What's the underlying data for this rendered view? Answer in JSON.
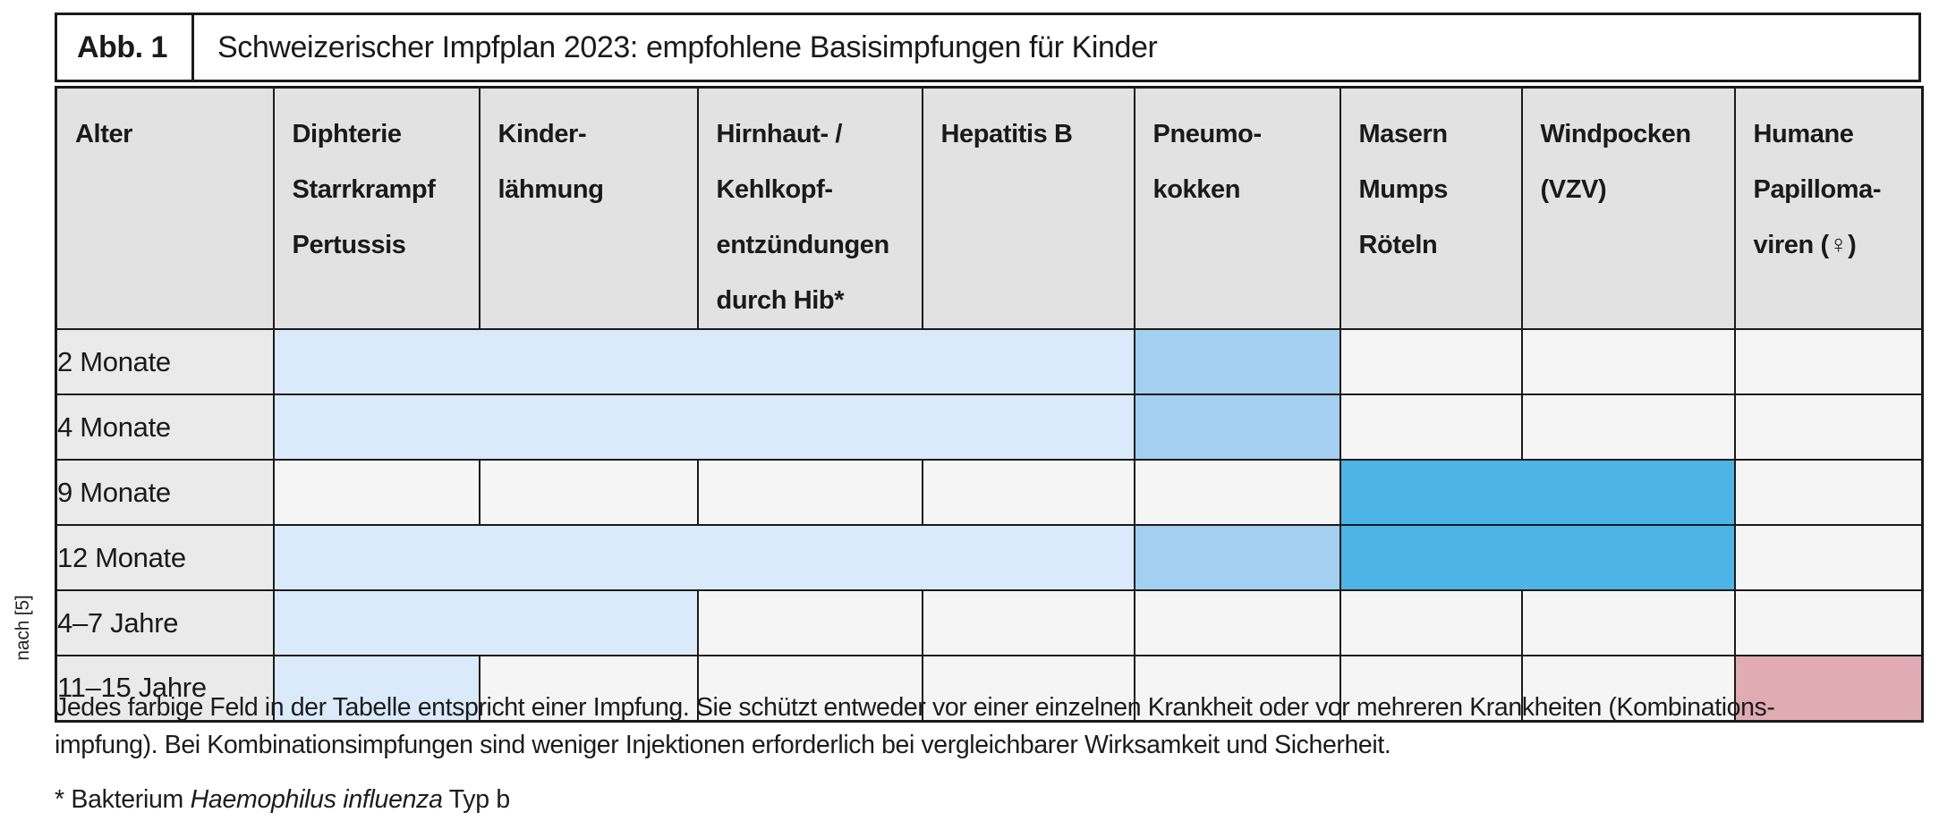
{
  "figure_header": {
    "label": "Abb. 1",
    "title": "Schweizerischer Impfplan 2023: empfohlene Basisimpfungen für Kinder"
  },
  "source_note": "nach [5]",
  "colors": {
    "header_bg": "#e2e2e2",
    "row_label_bg": "#eaeaea",
    "empty_cell": "#f5f5f5",
    "light_blue": "#dbeafa",
    "medium_blue": "#a3cff0",
    "dark_blue": "#4cb4e6",
    "pink": "#e1abb4",
    "border": "#1a1a1a"
  },
  "table": {
    "columns": [
      {
        "id": "alter",
        "lines": [
          "Alter"
        ]
      },
      {
        "id": "diphterie",
        "lines": [
          "Diphterie",
          "Starrkrampf",
          "Pertussis"
        ]
      },
      {
        "id": "kinderlaehmung",
        "lines": [
          "Kinder-",
          "lähmung"
        ]
      },
      {
        "id": "hib",
        "lines": [
          "Hirnhaut- /",
          "Kehlkopf-",
          "entzündungen",
          "durch Hib*"
        ]
      },
      {
        "id": "hepatitis-b",
        "lines": [
          "Hepatitis B"
        ]
      },
      {
        "id": "pneumokokken",
        "lines": [
          "Pneumo-",
          "kokken"
        ]
      },
      {
        "id": "masern",
        "lines": [
          "Masern",
          "Mumps",
          "Röteln"
        ]
      },
      {
        "id": "windpocken",
        "lines": [
          "Windpocken",
          "(VZV)"
        ]
      },
      {
        "id": "hpv",
        "lines": [
          "Humane",
          "Papilloma-",
          "viren (♀)"
        ]
      }
    ],
    "rows": [
      {
        "label": "2 Monate",
        "cells": [
          {
            "span": 4,
            "color": "light_blue"
          },
          {
            "span": 1,
            "color": "medium_blue"
          },
          {
            "span": 1,
            "color": "empty_cell"
          },
          {
            "span": 1,
            "color": "empty_cell"
          },
          {
            "span": 1,
            "color": "empty_cell"
          }
        ]
      },
      {
        "label": "4 Monate",
        "cells": [
          {
            "span": 4,
            "color": "light_blue"
          },
          {
            "span": 1,
            "color": "medium_blue"
          },
          {
            "span": 1,
            "color": "empty_cell"
          },
          {
            "span": 1,
            "color": "empty_cell"
          },
          {
            "span": 1,
            "color": "empty_cell"
          }
        ]
      },
      {
        "label": "9 Monate",
        "cells": [
          {
            "span": 1,
            "color": "empty_cell"
          },
          {
            "span": 1,
            "color": "empty_cell"
          },
          {
            "span": 1,
            "color": "empty_cell"
          },
          {
            "span": 1,
            "color": "empty_cell"
          },
          {
            "span": 1,
            "color": "empty_cell"
          },
          {
            "span": 2,
            "color": "dark_blue"
          },
          {
            "span": 1,
            "color": "empty_cell"
          }
        ]
      },
      {
        "label": "12 Monate",
        "cells": [
          {
            "span": 4,
            "color": "light_blue"
          },
          {
            "span": 1,
            "color": "medium_blue"
          },
          {
            "span": 2,
            "color": "dark_blue"
          },
          {
            "span": 1,
            "color": "empty_cell"
          }
        ]
      },
      {
        "label": "4–7 Jahre",
        "cells": [
          {
            "span": 2,
            "color": "light_blue"
          },
          {
            "span": 1,
            "color": "empty_cell"
          },
          {
            "span": 1,
            "color": "empty_cell"
          },
          {
            "span": 1,
            "color": "empty_cell"
          },
          {
            "span": 1,
            "color": "empty_cell"
          },
          {
            "span": 1,
            "color": "empty_cell"
          },
          {
            "span": 1,
            "color": "empty_cell"
          }
        ]
      },
      {
        "label": "11–15 Jahre",
        "cells": [
          {
            "span": 1,
            "color": "light_blue"
          },
          {
            "span": 1,
            "color": "empty_cell"
          },
          {
            "span": 1,
            "color": "empty_cell"
          },
          {
            "span": 1,
            "color": "empty_cell"
          },
          {
            "span": 1,
            "color": "empty_cell"
          },
          {
            "span": 1,
            "color": "empty_cell"
          },
          {
            "span": 1,
            "color": "empty_cell"
          },
          {
            "span": 1,
            "color": "pink"
          }
        ]
      }
    ]
  },
  "caption": {
    "line1": "Jedes farbige Feld in der Tabelle entspricht einer Impfung. Sie schützt entweder vor einer einzelnen Krankheit oder vor mehreren Krankheiten (Kombinations-",
    "line2": "impfung). Bei Kombinationsimpfungen sind weniger Injektionen erforderlich bei vergleichbarer Wirksamkeit und Sicherheit."
  },
  "footnote": {
    "prefix": "* Bakterium ",
    "italic_text": "Haemophilus influenza",
    "suffix": " Typ b"
  }
}
